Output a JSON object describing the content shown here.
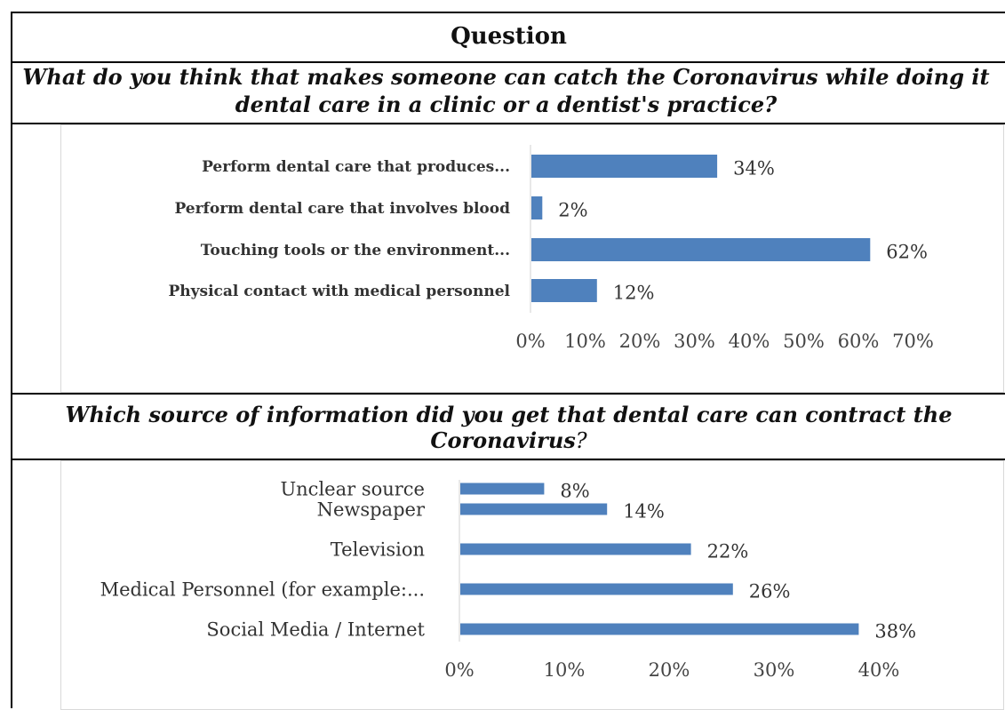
{
  "header": {
    "title": "Question"
  },
  "questions": [
    {
      "line1": "What do you think that makes someone can catch the Coronavirus while doing it",
      "line2": "dental care in a clinic or a dentist's practice?"
    },
    {
      "line1": "Which source of information did you get that dental care can contract the",
      "line2_main": "Coronavirus",
      "line2_tail": "?"
    }
  ],
  "chart_data": [
    {
      "type": "bar",
      "orientation": "horizontal",
      "categories": [
        "Perform dental care that produces...",
        "Perform dental care that involves blood",
        "Touching tools or the environment...",
        "Physical contact with medical personnel"
      ],
      "values": [
        34,
        2,
        62,
        12
      ],
      "value_labels": [
        "34%",
        "2%",
        "62%",
        "12%"
      ],
      "xticks": [
        "0%",
        "10%",
        "20%",
        "30%",
        "40%",
        "50%",
        "60%",
        "70%"
      ],
      "xlim": [
        0,
        70
      ],
      "grid": false,
      "bar_color": "#4f81bd"
    },
    {
      "type": "bar",
      "orientation": "horizontal",
      "categories": [
        "Unclear source",
        "Newspaper",
        "Television",
        "Medical Personnel (for example:...",
        "Social Media / Internet"
      ],
      "values": [
        8,
        14,
        22,
        26,
        38
      ],
      "value_labels": [
        "8%",
        "14%",
        "22%",
        "26%",
        "38%"
      ],
      "xticks": [
        "0%",
        "10%",
        "20%",
        "30%",
        "40%"
      ],
      "xlim": [
        0,
        40
      ],
      "grid": false,
      "bar_color": "#4f81bd"
    }
  ]
}
